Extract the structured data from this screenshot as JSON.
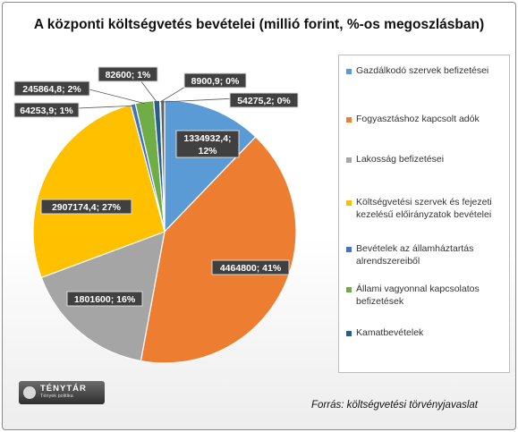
{
  "chart_data": {
    "type": "pie",
    "title": "A központi költségvetés bevételei (millió forint, %-os megoszlásban)",
    "slices": [
      {
        "name": "Gazdálkodó szervek befizetései",
        "value": 1334932.4,
        "label": "1334932,4; 12%",
        "color": "#5b9bd5"
      },
      {
        "name": "Fogyasztáshoz kapcsolt adók",
        "value": 4464800,
        "label": "4464800; 41%",
        "color": "#ed7d31"
      },
      {
        "name": "Lakosság befizetései",
        "value": 1801600,
        "label": "1801600; 16%",
        "color": "#a5a5a5"
      },
      {
        "name": "Költségvetési szervek és fejezeti kezelésű előirányzatok bevételei",
        "value": 2907174.4,
        "label": "2907174,4; 27%",
        "color": "#ffc000"
      },
      {
        "name": "Bevételek az államháztartás alrendszereiből",
        "value": 64253.9,
        "label": "64253,9; 1%",
        "color": "#4472c4"
      },
      {
        "name": "Állami vagyonnal kapcsolatos befizetések",
        "value": 245864.8,
        "label": "245864,8; 2%",
        "color": "#70ad47"
      },
      {
        "name": "Kamatbevételek",
        "value": 82600,
        "label": "82600; 1%",
        "color": "#255e91"
      },
      {
        "value": 8900.9,
        "label": "8900,9; 0%",
        "color": "#9e480e"
      },
      {
        "value": 54275.2,
        "label": "54275,2; 0%",
        "color": "#636363"
      }
    ],
    "legend_position": "right"
  },
  "source": "Forrás: költségvetési törvényjavaslat",
  "logo": {
    "name": "TÉNYTÁR",
    "subtitle": "Tények politika"
  }
}
